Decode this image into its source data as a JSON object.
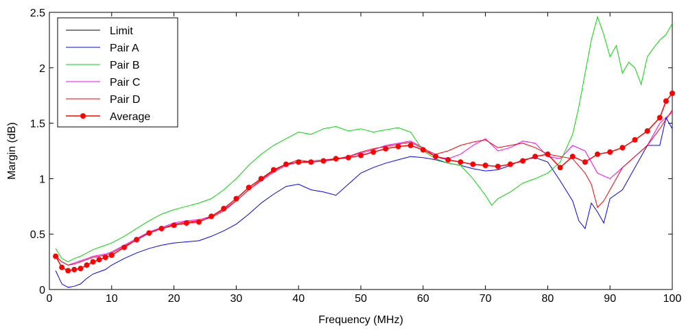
{
  "chart_data": {
    "type": "line",
    "title": "",
    "xlabel": "Frequency (MHz)",
    "ylabel": "Margin (dB)",
    "xlim": [
      0,
      100
    ],
    "ylim": [
      0,
      2.5
    ],
    "xticks": [
      "0",
      "10",
      "20",
      "30",
      "40",
      "50",
      "60",
      "70",
      "80",
      "90",
      "100"
    ],
    "yticks": [
      "0",
      "0.5",
      "1",
      "1.5",
      "2",
      "2.5"
    ],
    "grid": false,
    "legend_position": "top-left",
    "series": [
      {
        "name": "Limit",
        "color": "#000000",
        "x": [],
        "values": []
      },
      {
        "name": "Pair A",
        "color": "#0000ff",
        "x": [
          1,
          2,
          3,
          4,
          5,
          6,
          7,
          8,
          9,
          10,
          12,
          14,
          16,
          18,
          20,
          22,
          24,
          26,
          28,
          30,
          32,
          34,
          36,
          38,
          40,
          42,
          44,
          46,
          48,
          50,
          52,
          54,
          56,
          58,
          60,
          62,
          64,
          66,
          68,
          70,
          72,
          74,
          76,
          78,
          80,
          82,
          84,
          85,
          86,
          87,
          88,
          89,
          90,
          92,
          94,
          96,
          98,
          99,
          100
        ],
        "values": [
          0.17,
          0.05,
          0.02,
          0.03,
          0.05,
          0.1,
          0.14,
          0.16,
          0.18,
          0.22,
          0.28,
          0.33,
          0.37,
          0.4,
          0.42,
          0.43,
          0.44,
          0.48,
          0.53,
          0.59,
          0.68,
          0.78,
          0.86,
          0.93,
          0.95,
          0.9,
          0.88,
          0.85,
          0.95,
          1.05,
          1.1,
          1.14,
          1.17,
          1.2,
          1.19,
          1.17,
          1.14,
          1.12,
          1.09,
          1.07,
          1.08,
          1.12,
          1.17,
          1.19,
          1.15,
          0.98,
          0.8,
          0.62,
          0.55,
          0.78,
          0.7,
          0.6,
          0.82,
          0.9,
          1.1,
          1.3,
          1.3,
          1.55,
          1.45
        ]
      },
      {
        "name": "Pair B",
        "color": "#00dd00",
        "x": [
          1,
          2,
          3,
          4,
          5,
          6,
          7,
          8,
          9,
          10,
          12,
          14,
          16,
          18,
          20,
          22,
          24,
          26,
          28,
          30,
          32,
          34,
          36,
          38,
          40,
          42,
          44,
          46,
          48,
          50,
          52,
          54,
          56,
          58,
          60,
          62,
          64,
          66,
          68,
          70,
          71,
          72,
          74,
          76,
          78,
          80,
          82,
          84,
          85,
          86,
          87,
          88,
          89,
          90,
          91,
          92,
          93,
          94,
          95,
          96,
          97,
          98,
          99,
          100
        ],
        "values": [
          0.37,
          0.28,
          0.25,
          0.28,
          0.3,
          0.33,
          0.36,
          0.38,
          0.4,
          0.42,
          0.48,
          0.55,
          0.62,
          0.68,
          0.72,
          0.75,
          0.78,
          0.82,
          0.9,
          1.0,
          1.12,
          1.22,
          1.3,
          1.36,
          1.42,
          1.4,
          1.45,
          1.47,
          1.43,
          1.45,
          1.42,
          1.44,
          1.46,
          1.42,
          1.25,
          1.18,
          1.14,
          1.12,
          1.0,
          0.85,
          0.76,
          0.82,
          0.88,
          0.96,
          1.0,
          1.05,
          1.15,
          1.4,
          1.65,
          1.95,
          2.25,
          2.46,
          2.3,
          2.1,
          2.2,
          1.95,
          2.05,
          2.0,
          1.85,
          2.1,
          2.18,
          2.25,
          2.3,
          2.4
        ]
      },
      {
        "name": "Pair C",
        "color": "#ff00ff",
        "x": [
          1,
          2,
          3,
          4,
          5,
          6,
          7,
          8,
          9,
          10,
          12,
          14,
          16,
          18,
          20,
          22,
          24,
          26,
          28,
          30,
          32,
          34,
          36,
          38,
          40,
          42,
          44,
          46,
          48,
          50,
          52,
          54,
          56,
          58,
          60,
          62,
          64,
          66,
          68,
          70,
          72,
          74,
          76,
          78,
          80,
          82,
          84,
          86,
          88,
          90,
          92,
          94,
          96,
          98,
          100
        ],
        "values": [
          0.3,
          0.25,
          0.22,
          0.24,
          0.26,
          0.28,
          0.3,
          0.31,
          0.32,
          0.34,
          0.4,
          0.46,
          0.52,
          0.56,
          0.6,
          0.62,
          0.63,
          0.66,
          0.72,
          0.8,
          0.9,
          0.98,
          1.06,
          1.12,
          1.15,
          1.16,
          1.17,
          1.18,
          1.2,
          1.23,
          1.26,
          1.3,
          1.32,
          1.34,
          1.28,
          1.2,
          1.18,
          1.22,
          1.3,
          1.36,
          1.25,
          1.28,
          1.34,
          1.32,
          1.2,
          1.18,
          1.3,
          1.25,
          1.05,
          1.0,
          1.1,
          1.2,
          1.3,
          1.5,
          1.6
        ]
      },
      {
        "name": "Pair D",
        "color": "#ff0000",
        "x": [
          1,
          2,
          3,
          4,
          5,
          6,
          7,
          8,
          9,
          10,
          12,
          14,
          16,
          18,
          20,
          22,
          24,
          26,
          28,
          30,
          32,
          34,
          36,
          38,
          40,
          42,
          44,
          46,
          48,
          50,
          52,
          54,
          56,
          58,
          60,
          62,
          64,
          66,
          68,
          70,
          72,
          74,
          76,
          78,
          80,
          82,
          84,
          86,
          87,
          88,
          89,
          90,
          92,
          94,
          96,
          98,
          100
        ],
        "values": [
          0.3,
          0.25,
          0.22,
          0.23,
          0.25,
          0.27,
          0.29,
          0.3,
          0.31,
          0.33,
          0.39,
          0.45,
          0.51,
          0.55,
          0.59,
          0.61,
          0.62,
          0.65,
          0.71,
          0.8,
          0.9,
          0.99,
          1.07,
          1.13,
          1.17,
          1.15,
          1.16,
          1.17,
          1.2,
          1.24,
          1.27,
          1.29,
          1.31,
          1.33,
          1.27,
          1.22,
          1.25,
          1.3,
          1.33,
          1.35,
          1.28,
          1.3,
          1.32,
          1.28,
          1.22,
          1.2,
          1.18,
          1.05,
          0.95,
          0.74,
          0.8,
          0.9,
          1.1,
          1.2,
          1.3,
          1.45,
          1.62
        ]
      },
      {
        "name": "Average",
        "color": "#ff0000",
        "marker": "circle",
        "x": [
          1,
          2,
          3,
          4,
          5,
          6,
          7,
          8,
          9,
          10,
          12,
          14,
          16,
          18,
          20,
          22,
          24,
          26,
          28,
          30,
          32,
          34,
          36,
          38,
          40,
          42,
          44,
          46,
          48,
          50,
          52,
          54,
          56,
          58,
          60,
          62,
          64,
          66,
          68,
          70,
          72,
          74,
          76,
          78,
          80,
          82,
          84,
          86,
          88,
          90,
          92,
          94,
          96,
          98,
          99,
          100
        ],
        "values": [
          0.3,
          0.2,
          0.17,
          0.18,
          0.19,
          0.22,
          0.25,
          0.27,
          0.29,
          0.31,
          0.38,
          0.45,
          0.51,
          0.55,
          0.58,
          0.6,
          0.61,
          0.66,
          0.73,
          0.82,
          0.92,
          1.0,
          1.08,
          1.13,
          1.15,
          1.15,
          1.16,
          1.18,
          1.19,
          1.21,
          1.24,
          1.27,
          1.29,
          1.3,
          1.26,
          1.2,
          1.17,
          1.15,
          1.13,
          1.12,
          1.11,
          1.13,
          1.16,
          1.2,
          1.22,
          1.1,
          1.2,
          1.15,
          1.22,
          1.24,
          1.28,
          1.35,
          1.43,
          1.55,
          1.7,
          1.77
        ]
      }
    ]
  }
}
